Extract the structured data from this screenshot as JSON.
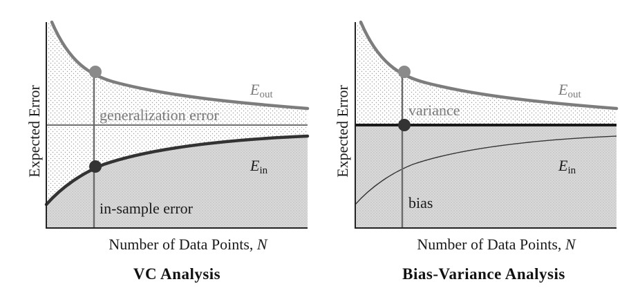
{
  "chart_data": [
    {
      "type": "line",
      "title": "VC Analysis",
      "xlabel": "Number of Data Points, N",
      "ylabel": "Expected Error",
      "series": [
        {
          "name": "E_out",
          "label_main": "E",
          "label_sub": "out",
          "color": "#7d7d7d"
        },
        {
          "name": "E_in",
          "label_main": "E",
          "label_sub": "in",
          "color": "#333333"
        }
      ],
      "annotations": [
        "generalization error",
        "in-sample error"
      ],
      "colors": {
        "curve_out": "#7d7d7d",
        "curve_in": "#333333",
        "fill": "#d8d8d8"
      }
    },
    {
      "type": "line",
      "title": "Bias-Variance Analysis",
      "xlabel": "Number of Data Points, N",
      "ylabel": "Expected Error",
      "series": [
        {
          "name": "E_out",
          "label_main": "E",
          "label_sub": "out",
          "color": "#7d7d7d"
        },
        {
          "name": "E_in",
          "label_main": "E",
          "label_sub": "in",
          "color": "#333333"
        }
      ],
      "annotations": [
        "variance",
        "bias"
      ],
      "colors": {
        "curve_out": "#7d7d7d",
        "curve_in": "#333333",
        "fill": "#d8d8d8"
      }
    }
  ]
}
